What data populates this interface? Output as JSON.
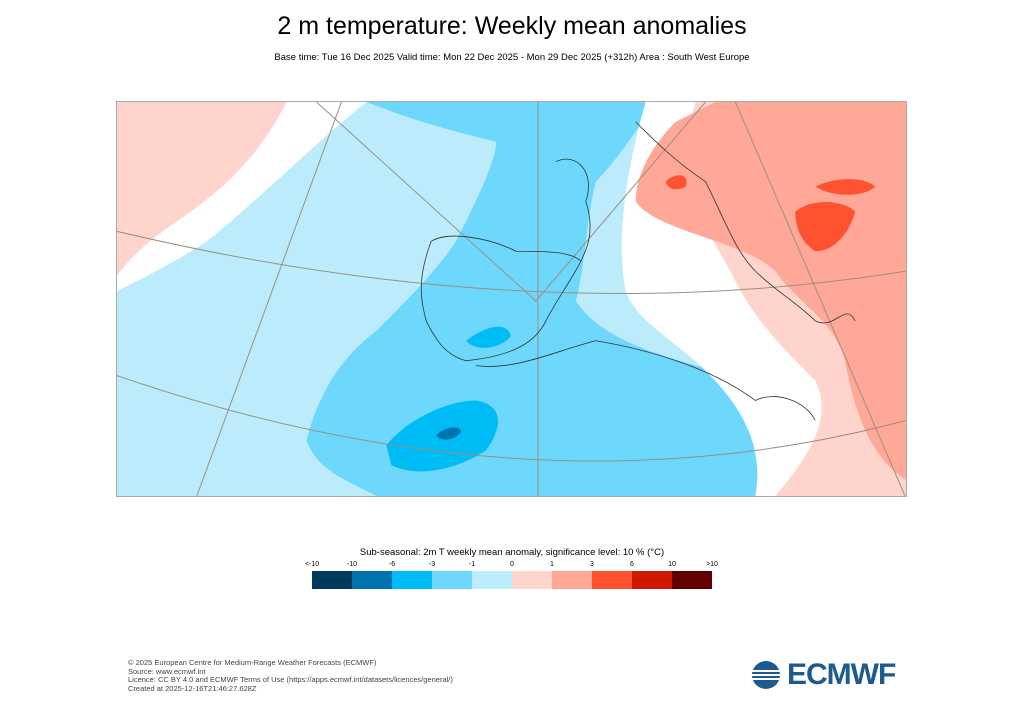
{
  "header": {
    "title": "2 m temperature: Weekly mean anomalies",
    "subtitle": "Base time: Tue 16 Dec 2025 Valid time: Mon 22 Dec 2025 - Mon 29 Dec 2025 (+312h) Area : South West Europe"
  },
  "legend": {
    "title": "Sub-seasonal: 2m T weekly mean anomaly, significance level: 10 % (°C)",
    "ticks": [
      "<-10",
      "-10",
      "-6",
      "-3",
      "-1",
      "0",
      "1",
      "3",
      "6",
      "10",
      ">10"
    ],
    "colors": [
      "#003a5c",
      "#0074b0",
      "#00bcf5",
      "#6dd8fb",
      "#bcecfc",
      "#ffd4cd",
      "#ffa897",
      "#ff5230",
      "#d01800",
      "#650000"
    ]
  },
  "footer": {
    "lines": [
      "© 2025 European Centre for Medium-Range Weather Forecasts (ECMWF)",
      "Source: www.ecmwf.int",
      "Licence: CC BY 4.0 and ECMWF Terms of Use (https://apps.ecmwf.int/datasets/licences/general/)",
      "Created at 2025-12-16T21:46:27.628Z"
    ],
    "logo_text": "ECMWF"
  }
}
